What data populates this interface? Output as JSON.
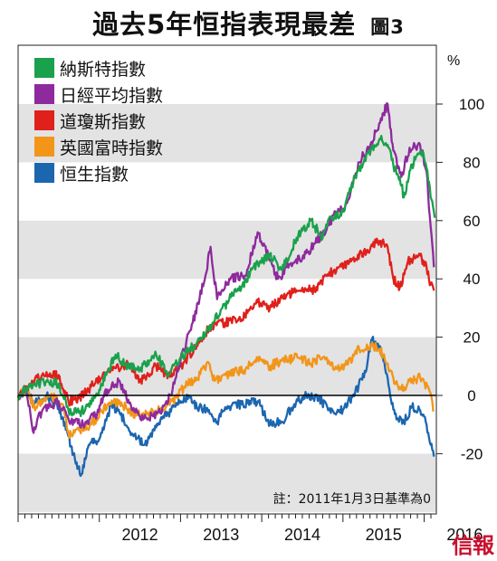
{
  "title": "過去5年恒指表現最差",
  "figure_label": "圖3",
  "note": "註：2011年1月3日基準為0",
  "watermark": "信報",
  "chart_data": {
    "type": "line",
    "ylabel": "%",
    "ylim": [
      -30,
      110
    ],
    "yticks": [
      -20,
      0,
      20,
      40,
      60,
      80,
      100
    ],
    "xlim": [
      2011.0,
      2016.15
    ],
    "xticks": [
      2012,
      2013,
      2014,
      2015,
      2016
    ],
    "grid": "alternating horizontal bands",
    "legend": "top-left",
    "series": [
      {
        "name": "納斯特指數",
        "color": "#1aa14b",
        "points": [
          [
            2011.0,
            0
          ],
          [
            2011.15,
            3
          ],
          [
            2011.35,
            5
          ],
          [
            2011.5,
            4
          ],
          [
            2011.62,
            -5
          ],
          [
            2011.75,
            -6
          ],
          [
            2011.9,
            -3
          ],
          [
            2012.0,
            2
          ],
          [
            2012.2,
            14
          ],
          [
            2012.35,
            10
          ],
          [
            2012.5,
            9
          ],
          [
            2012.7,
            14
          ],
          [
            2012.85,
            7
          ],
          [
            2013.0,
            13
          ],
          [
            2013.2,
            18
          ],
          [
            2013.4,
            25
          ],
          [
            2013.6,
            33
          ],
          [
            2013.75,
            37
          ],
          [
            2013.9,
            44
          ],
          [
            2014.1,
            48
          ],
          [
            2014.25,
            43
          ],
          [
            2014.45,
            55
          ],
          [
            2014.6,
            60
          ],
          [
            2014.75,
            54
          ],
          [
            2014.85,
            61
          ],
          [
            2015.0,
            63
          ],
          [
            2015.15,
            75
          ],
          [
            2015.3,
            83
          ],
          [
            2015.45,
            88
          ],
          [
            2015.55,
            86
          ],
          [
            2015.62,
            79
          ],
          [
            2015.7,
            75
          ],
          [
            2015.75,
            68
          ],
          [
            2015.82,
            77
          ],
          [
            2015.9,
            82
          ],
          [
            2015.97,
            84
          ],
          [
            2016.03,
            78
          ],
          [
            2016.08,
            68
          ],
          [
            2016.13,
            61
          ]
        ]
      },
      {
        "name": "日經平均指數",
        "color": "#8e2a9d",
        "points": [
          [
            2011.0,
            0
          ],
          [
            2011.1,
            2
          ],
          [
            2011.18,
            -12
          ],
          [
            2011.3,
            -5
          ],
          [
            2011.5,
            -2
          ],
          [
            2011.62,
            -8
          ],
          [
            2011.8,
            -10
          ],
          [
            2011.95,
            -7
          ],
          [
            2012.1,
            2
          ],
          [
            2012.25,
            5
          ],
          [
            2012.4,
            -5
          ],
          [
            2012.55,
            -8
          ],
          [
            2012.75,
            -6
          ],
          [
            2012.88,
            0
          ],
          [
            2013.0,
            12
          ],
          [
            2013.15,
            25
          ],
          [
            2013.3,
            40
          ],
          [
            2013.37,
            51
          ],
          [
            2013.45,
            33
          ],
          [
            2013.6,
            40
          ],
          [
            2013.8,
            41
          ],
          [
            2013.95,
            56
          ],
          [
            2014.08,
            48
          ],
          [
            2014.2,
            40
          ],
          [
            2014.35,
            45
          ],
          [
            2014.5,
            47
          ],
          [
            2014.65,
            52
          ],
          [
            2014.8,
            57
          ],
          [
            2014.92,
            63
          ],
          [
            2015.05,
            66
          ],
          [
            2015.2,
            80
          ],
          [
            2015.35,
            87
          ],
          [
            2015.5,
            97
          ],
          [
            2015.55,
            100
          ],
          [
            2015.62,
            84
          ],
          [
            2015.72,
            75
          ],
          [
            2015.82,
            85
          ],
          [
            2015.95,
            86
          ],
          [
            2016.03,
            77
          ],
          [
            2016.08,
            58
          ],
          [
            2016.12,
            44
          ]
        ]
      },
      {
        "name": "道瓊斯指數",
        "color": "#e0201b",
        "points": [
          [
            2011.0,
            0
          ],
          [
            2011.15,
            4
          ],
          [
            2011.35,
            8
          ],
          [
            2011.5,
            7
          ],
          [
            2011.62,
            -2
          ],
          [
            2011.75,
            -1
          ],
          [
            2011.9,
            3
          ],
          [
            2012.1,
            8
          ],
          [
            2012.35,
            11
          ],
          [
            2012.5,
            5
          ],
          [
            2012.7,
            10
          ],
          [
            2012.85,
            7
          ],
          [
            2013.0,
            10
          ],
          [
            2013.2,
            17
          ],
          [
            2013.35,
            23
          ],
          [
            2013.55,
            25
          ],
          [
            2013.75,
            26
          ],
          [
            2013.95,
            32
          ],
          [
            2014.1,
            30
          ],
          [
            2014.3,
            34
          ],
          [
            2014.5,
            37
          ],
          [
            2014.65,
            36
          ],
          [
            2014.8,
            41
          ],
          [
            2014.95,
            44
          ],
          [
            2015.1,
            46
          ],
          [
            2015.3,
            50
          ],
          [
            2015.45,
            53
          ],
          [
            2015.55,
            51
          ],
          [
            2015.62,
            40
          ],
          [
            2015.7,
            37
          ],
          [
            2015.8,
            46
          ],
          [
            2015.95,
            48
          ],
          [
            2016.03,
            44
          ],
          [
            2016.08,
            38
          ],
          [
            2016.12,
            36
          ]
        ]
      },
      {
        "name": "英國富時指數",
        "color": "#f29519",
        "points": [
          [
            2011.0,
            0
          ],
          [
            2011.1,
            2
          ],
          [
            2011.2,
            -4
          ],
          [
            2011.4,
            0
          ],
          [
            2011.55,
            -3
          ],
          [
            2011.62,
            -13
          ],
          [
            2011.75,
            -12
          ],
          [
            2011.9,
            -10
          ],
          [
            2012.1,
            -3
          ],
          [
            2012.25,
            -2
          ],
          [
            2012.4,
            -6
          ],
          [
            2012.55,
            -7
          ],
          [
            2012.75,
            -5
          ],
          [
            2012.9,
            -2
          ],
          [
            2013.05,
            3
          ],
          [
            2013.2,
            6
          ],
          [
            2013.35,
            11
          ],
          [
            2013.42,
            5
          ],
          [
            2013.55,
            7
          ],
          [
            2013.8,
            9
          ],
          [
            2013.95,
            13
          ],
          [
            2014.1,
            10
          ],
          [
            2014.25,
            12
          ],
          [
            2014.45,
            13
          ],
          [
            2014.6,
            11
          ],
          [
            2014.75,
            13
          ],
          [
            2014.9,
            9
          ],
          [
            2015.05,
            11
          ],
          [
            2015.2,
            16
          ],
          [
            2015.35,
            17
          ],
          [
            2015.45,
            16
          ],
          [
            2015.55,
            11
          ],
          [
            2015.62,
            6
          ],
          [
            2015.72,
            2
          ],
          [
            2015.82,
            5
          ],
          [
            2015.95,
            6
          ],
          [
            2016.05,
            3
          ],
          [
            2016.12,
            -5
          ]
        ]
      },
      {
        "name": "恒生指數",
        "color": "#1c66b0",
        "points": [
          [
            2011.0,
            0
          ],
          [
            2011.1,
            2
          ],
          [
            2011.2,
            -3
          ],
          [
            2011.35,
            0
          ],
          [
            2011.5,
            -4
          ],
          [
            2011.62,
            -14
          ],
          [
            2011.7,
            -22
          ],
          [
            2011.78,
            -27
          ],
          [
            2011.88,
            -17
          ],
          [
            2012.0,
            -15
          ],
          [
            2012.15,
            -3
          ],
          [
            2012.25,
            -6
          ],
          [
            2012.4,
            -13
          ],
          [
            2012.55,
            -17
          ],
          [
            2012.7,
            -11
          ],
          [
            2012.85,
            -6
          ],
          [
            2013.0,
            -2
          ],
          [
            2013.1,
            0
          ],
          [
            2013.2,
            -4
          ],
          [
            2013.35,
            -5
          ],
          [
            2013.45,
            -9
          ],
          [
            2013.55,
            -4
          ],
          [
            2013.75,
            -3
          ],
          [
            2013.95,
            -2
          ],
          [
            2014.1,
            -10
          ],
          [
            2014.25,
            -9
          ],
          [
            2014.4,
            -3
          ],
          [
            2014.55,
            0
          ],
          [
            2014.7,
            -1
          ],
          [
            2014.85,
            -6
          ],
          [
            2015.0,
            -5
          ],
          [
            2015.15,
            1
          ],
          [
            2015.28,
            8
          ],
          [
            2015.35,
            19
          ],
          [
            2015.45,
            17
          ],
          [
            2015.52,
            9
          ],
          [
            2015.6,
            -3
          ],
          [
            2015.68,
            -8
          ],
          [
            2015.75,
            -9
          ],
          [
            2015.85,
            -4
          ],
          [
            2015.95,
            -5
          ],
          [
            2016.03,
            -10
          ],
          [
            2016.08,
            -17
          ],
          [
            2016.12,
            -21
          ]
        ]
      }
    ]
  }
}
